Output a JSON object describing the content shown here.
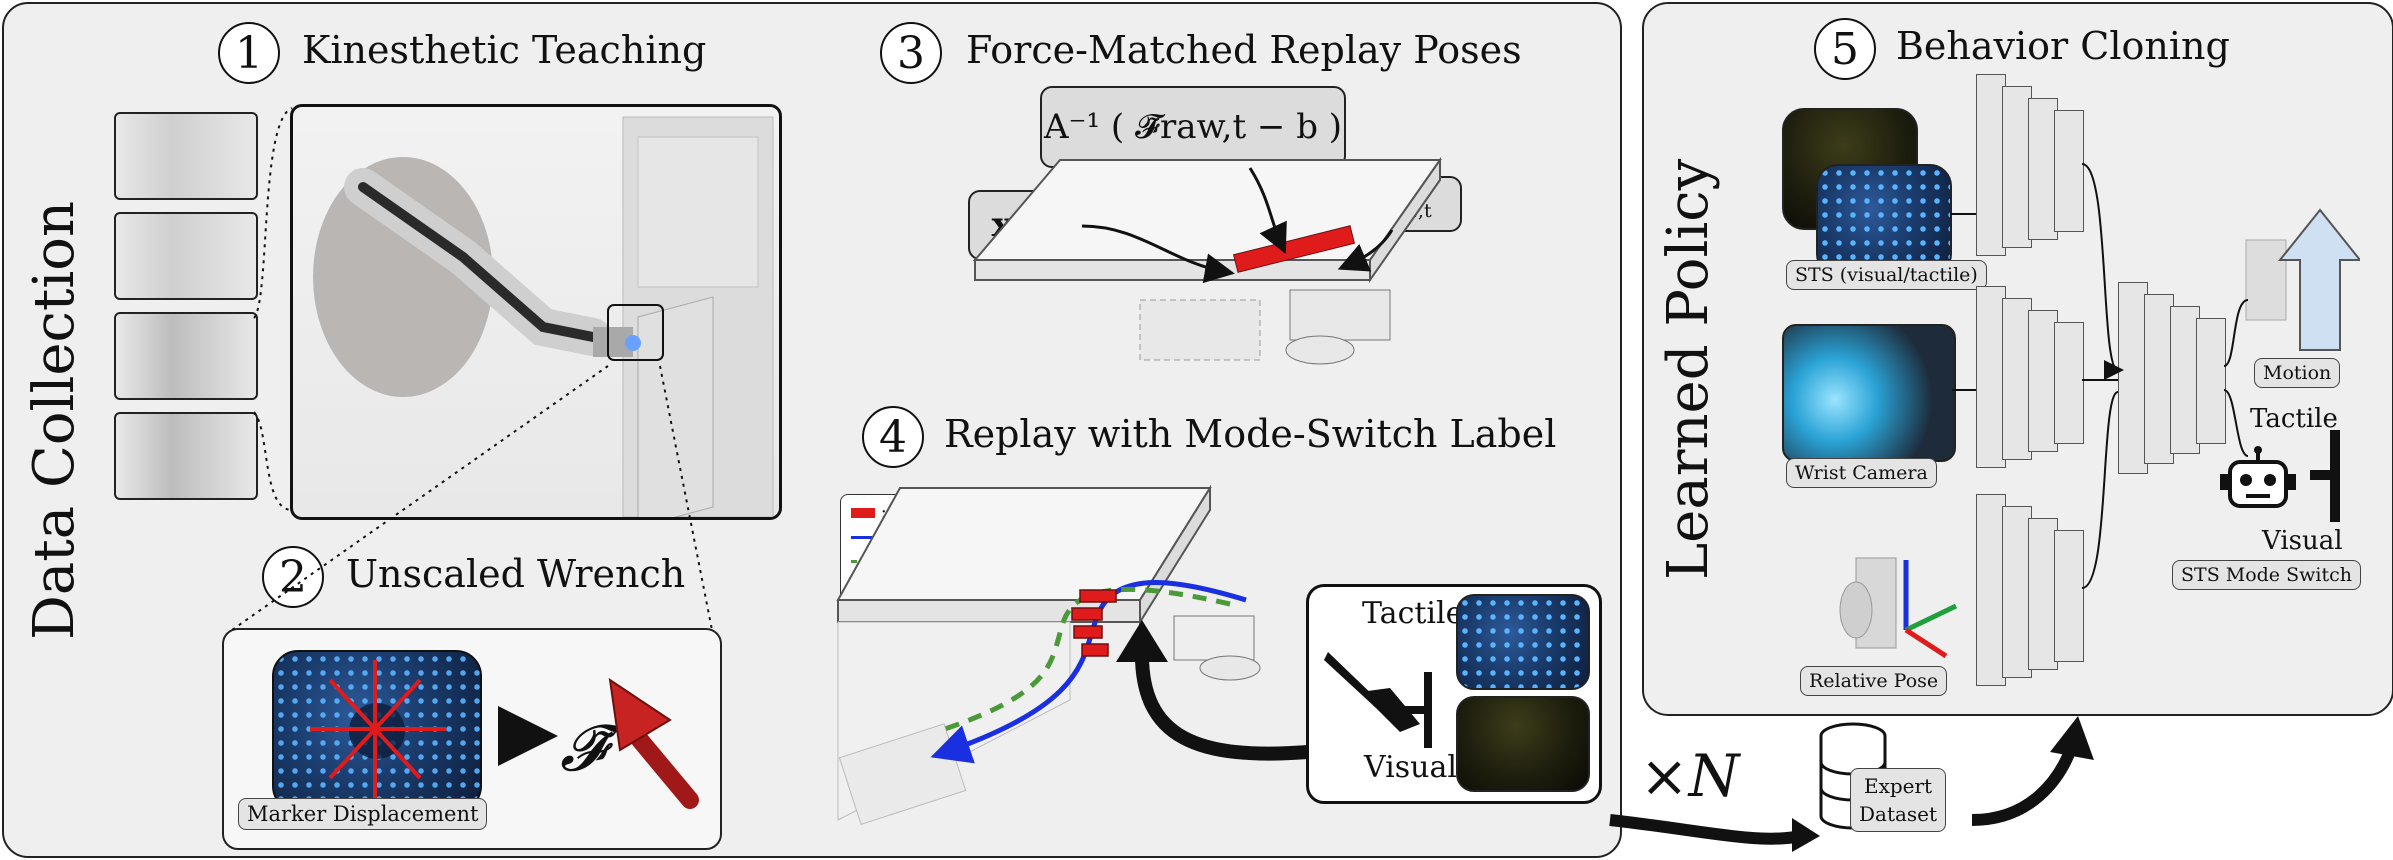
{
  "figure": {
    "left_panel_label": "Data Collection",
    "right_panel_label": "Learned Policy",
    "steps": [
      {
        "number": "1",
        "title": "Kinesthetic Teaching"
      },
      {
        "number": "2",
        "title": "Unscaled Wrench"
      },
      {
        "number": "3",
        "title": "Force-Matched Replay Poses"
      },
      {
        "number": "4",
        "title": "Replay with Mode-Switch Label"
      },
      {
        "number": "5",
        "title": "Behavior Cloning"
      }
    ],
    "step2": {
      "marker_label": "Marker Displacement",
      "wrench_symbol": "𝓕̃"
    },
    "step3": {
      "equation": "A⁻¹ ( 𝓕̃raw,t − b )",
      "x_rep": "x",
      "x_rep_sup": "d",
      "x_rep_sub": "rep,t",
      "x_raw": "x",
      "x_raw_sub": "raw,t"
    },
    "step4": {
      "legend": [
        {
          "key": "force",
          "text": ": Force",
          "color": "#e01b1b"
        },
        {
          "key": "raw_demo",
          "text": ": Raw Demo",
          "color": "#1a2fe0"
        },
        {
          "key": "force_matched",
          "text": ": Force-\nMatched",
          "color": "#4a9a3a"
        }
      ],
      "tactile": "Tactile",
      "visual": "Visual"
    },
    "multiplier": "×N",
    "dataset": "Expert\nDataset",
    "step5": {
      "inputs": [
        {
          "label": "STS (visual/tactile)"
        },
        {
          "label": "Wrist Camera"
        },
        {
          "label": "Relative Pose"
        }
      ],
      "outputs": {
        "motion": "Motion",
        "tactile": "Tactile",
        "visual": "Visual",
        "mode_switch": "STS Mode Switch"
      }
    }
  },
  "colors": {
    "panel_bg": "#efefef",
    "force_red": "#e01b1b",
    "raw_blue": "#1a2fe0",
    "matched_green": "#4a9a3a",
    "motion_arrow": "#cfe0f3",
    "wrench_arrow": "#a01818"
  }
}
